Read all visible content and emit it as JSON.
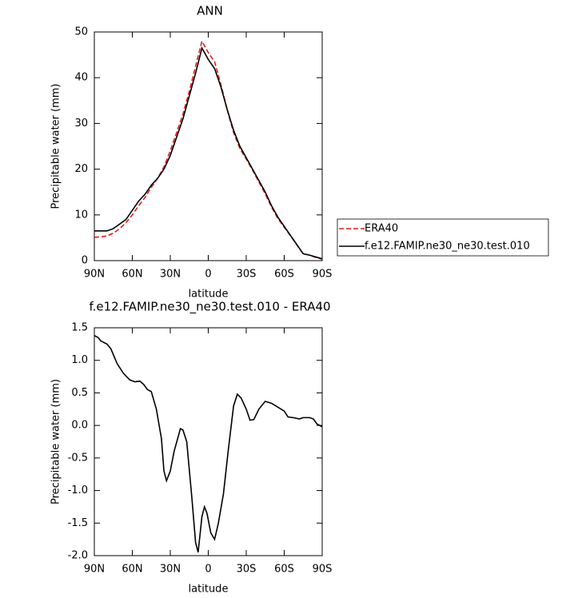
{
  "chart_data": [
    {
      "type": "line",
      "title": "ANN",
      "xlabel": "latitude",
      "ylabel": "Precipitable water (mm)",
      "x": [
        90,
        85,
        80,
        75,
        70,
        65,
        60,
        55,
        50,
        45,
        40,
        35,
        30,
        25,
        20,
        15,
        10,
        5,
        0,
        -5,
        -10,
        -15,
        -20,
        -25,
        -30,
        -35,
        -40,
        -45,
        -50,
        -55,
        -60,
        -65,
        -70,
        -75,
        -80,
        -85,
        -90
      ],
      "series": [
        {
          "name": "ERA40",
          "color": "#e41a1c",
          "linestyle": "dashed",
          "values": [
            5.1,
            5.2,
            5.4,
            6,
            7,
            8.3,
            10,
            12,
            13.8,
            16,
            18,
            20.5,
            24,
            28,
            32,
            37,
            42.5,
            48,
            45.5,
            43.5,
            38.5,
            33,
            28,
            24.5,
            22.2,
            19.8,
            17.2,
            14.6,
            11.7,
            9.2,
            7.3,
            5.4,
            3.4,
            1.5,
            1.2,
            0.7,
            0.3
          ]
        },
        {
          "name": "f.e12.FAMIP.ne30_ne30.test.010",
          "color": "#000000",
          "linestyle": "solid",
          "values": [
            6.5,
            6.5,
            6.5,
            7,
            8,
            9,
            11,
            13,
            14.5,
            16.5,
            18,
            20,
            23,
            27,
            31,
            36,
            41,
            46.5,
            44,
            42,
            38,
            33,
            28.5,
            25,
            22.5,
            20,
            17.5,
            15,
            12,
            9.5,
            7.5,
            5.5,
            3.5,
            1.5,
            1.2,
            0.8,
            0.4
          ]
        }
      ],
      "xlim": [
        90,
        -90
      ],
      "xticks": [
        {
          "value": 90,
          "label": "90N"
        },
        {
          "value": 60,
          "label": "60N"
        },
        {
          "value": 30,
          "label": "30N"
        },
        0,
        {
          "value": -30,
          "label": "30S"
        },
        {
          "value": -60,
          "label": "60S"
        },
        {
          "value": -90,
          "label": "90S"
        }
      ],
      "ylim": [
        0,
        50
      ],
      "yticks": [
        0,
        10,
        20,
        30,
        40,
        50
      ],
      "legend": "right"
    },
    {
      "type": "line",
      "title": "f.e12.FAMIP.ne30_ne30.test.010 - ERA40",
      "xlabel": "latitude",
      "ylabel": "Precipitable water (mm)",
      "x": [
        90,
        87,
        85,
        80,
        77,
        72,
        67,
        62,
        58,
        54,
        51,
        48,
        45,
        41,
        37,
        35,
        33,
        30,
        27,
        22,
        20,
        17,
        13,
        10,
        8,
        5,
        3,
        1,
        -2,
        -5,
        -8,
        -12,
        -16,
        -20,
        -23,
        -26,
        -30,
        -33,
        -36,
        -40,
        -45,
        -50,
        -55,
        -60,
        -63,
        -67,
        -72,
        -75,
        -80,
        -83,
        -86,
        -90
      ],
      "series": [
        {
          "color": "#000000",
          "linestyle": "solid",
          "values": [
            1.38,
            1.35,
            1.3,
            1.25,
            1.18,
            0.95,
            0.8,
            0.7,
            0.67,
            0.68,
            0.63,
            0.55,
            0.52,
            0.25,
            -0.2,
            -0.7,
            -0.85,
            -0.7,
            -0.4,
            -0.05,
            -0.07,
            -0.25,
            -1.1,
            -1.8,
            -1.95,
            -1.4,
            -1.25,
            -1.35,
            -1.65,
            -1.75,
            -1.5,
            -1.05,
            -0.35,
            0.3,
            0.48,
            0.42,
            0.25,
            0.08,
            0.09,
            0.25,
            0.37,
            0.34,
            0.28,
            0.22,
            0.13,
            0.12,
            0.1,
            0.12,
            0.12,
            0.1,
            0.02,
            -0.02
          ]
        }
      ],
      "xlim": [
        90,
        -90
      ],
      "xticks": [
        {
          "value": 90,
          "label": "90N"
        },
        {
          "value": 60,
          "label": "60N"
        },
        {
          "value": 30,
          "label": "30N"
        },
        0,
        {
          "value": -30,
          "label": "30S"
        },
        {
          "value": -60,
          "label": "60S"
        },
        {
          "value": -90,
          "label": "90S"
        }
      ],
      "ylim": [
        -2,
        1.5
      ],
      "yticks": [
        {
          "value": -2,
          "label": "-2.0"
        },
        -1.5,
        {
          "value": -1,
          "label": "-1.0"
        },
        -0.5,
        {
          "value": 0,
          "label": "0.0"
        },
        0.5,
        {
          "value": 1,
          "label": "1.0"
        },
        1.5
      ]
    }
  ]
}
